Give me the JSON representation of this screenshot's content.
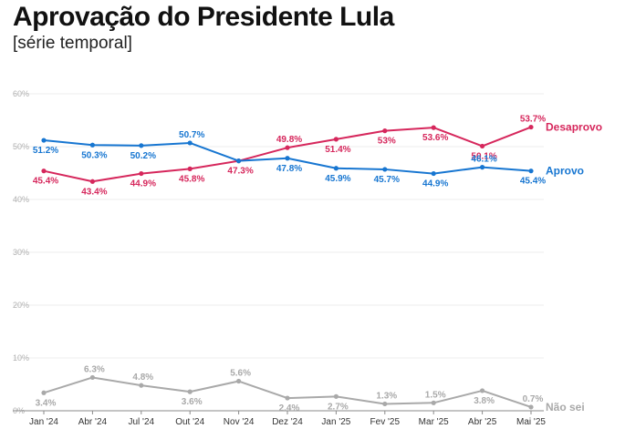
{
  "chart_data": {
    "type": "line",
    "title": "Aprovação do Presidente Lula",
    "subtitle": "[série temporal]",
    "x": [
      "Jan '24",
      "Abr '24",
      "Jul '24",
      "Out '24",
      "Nov '24",
      "Dez '24",
      "Jan '25",
      "Fev '25",
      "Mar '25",
      "Abr '25",
      "Mai '25"
    ],
    "yticks": [
      "0%",
      "10%",
      "20%",
      "30%",
      "40%",
      "50%",
      "60%"
    ],
    "ylim": [
      0,
      60
    ],
    "grid": true,
    "series": [
      {
        "name": "Desaprovo",
        "color": "#d6275c",
        "values": [
          45.4,
          43.4,
          44.9,
          45.8,
          47.3,
          49.8,
          51.4,
          53,
          53.6,
          50.1,
          53.7
        ],
        "labels": [
          "45.4%",
          "43.4%",
          "44.9%",
          "45.8%",
          "47.3%",
          "49.8%",
          "51.4%",
          "53%",
          "53.6%",
          "50.1%",
          "53.7%"
        ]
      },
      {
        "name": "Aprovo",
        "color": "#1776d1",
        "values": [
          51.2,
          50.3,
          50.2,
          50.7,
          47.3,
          47.8,
          45.9,
          45.7,
          44.9,
          46.1,
          45.4
        ],
        "labels": [
          "51.2%",
          "50.3%",
          "50.2%",
          "50.7%",
          "",
          "47.8%",
          "45.9%",
          "45.7%",
          "44.9%",
          "46.1%",
          "45.4%"
        ]
      },
      {
        "name": "Não sei",
        "color": "#a9a9a9",
        "values": [
          3.4,
          6.3,
          4.8,
          3.6,
          5.6,
          2.4,
          2.7,
          1.3,
          1.5,
          3.8,
          0.7
        ],
        "labels": [
          "3.4%",
          "6.3%",
          "4.8%",
          "3.6%",
          "5.6%",
          "2.4%",
          "2.7%",
          "1.3%",
          "1.5%",
          "3.8%",
          "0.7%"
        ]
      }
    ]
  }
}
